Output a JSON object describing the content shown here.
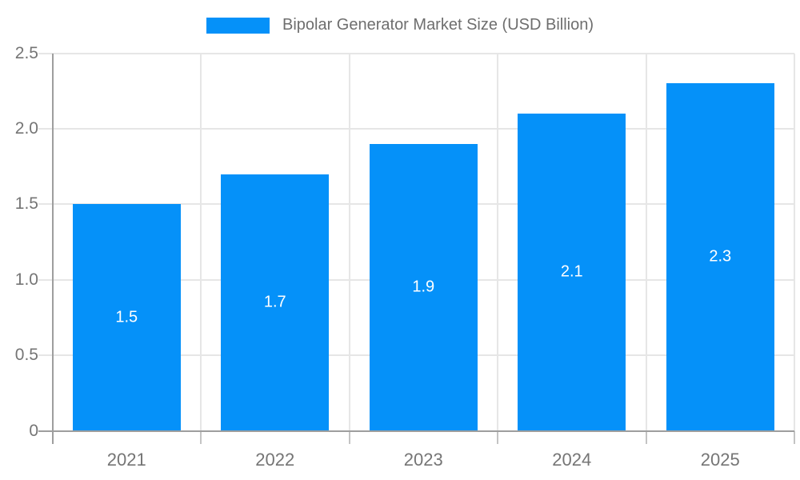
{
  "chart_data": {
    "type": "bar",
    "title": "Bipolar Generator Market Size (USD Billion)",
    "categories": [
      "2021",
      "2022",
      "2023",
      "2024",
      "2025"
    ],
    "values": [
      1.5,
      1.7,
      1.9,
      2.1,
      2.3
    ],
    "bar_value_labels": [
      "1.5",
      "1.7",
      "1.9",
      "2.1",
      "2.3"
    ],
    "xlabel": "",
    "ylabel": "",
    "ylim": [
      0,
      2.5
    ],
    "yticks": [
      0,
      0.5,
      1.0,
      1.5,
      2.0,
      2.5
    ],
    "ytick_labels": [
      "0",
      "0.5",
      "1.0",
      "1.5",
      "2.0",
      "2.5"
    ],
    "grid": true,
    "legend_position": "top-center",
    "legend_entries": [
      "Bipolar Generator Market Size (USD Billion)"
    ],
    "colors": {
      "bar": "#0591f9",
      "bar_label_text": "#ffffff",
      "axis_text": "#757575",
      "legend_text": "#6e6e6e",
      "gridline": "#e6e6e6",
      "axis_line": "#9e9e9e",
      "x_tick": "#c4c4c4",
      "background": "#ffffff"
    }
  }
}
